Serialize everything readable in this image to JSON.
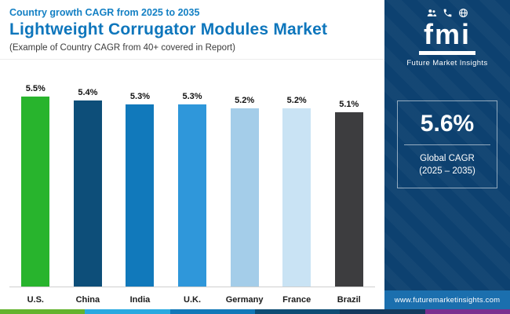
{
  "header": {
    "eyebrow": "Country growth CAGR from 2025 to 2035",
    "title": "Lightweight Corrugator Modules Market",
    "subtitle": "(Example of Country CAGR from 40+ covered in Report)"
  },
  "chart_data": {
    "type": "bar",
    "title": "Country growth CAGR from 2025 to 2035",
    "categories": [
      "U.S.",
      "China",
      "India",
      "U.K.",
      "Germany",
      "France",
      "Brazil"
    ],
    "values": [
      5.5,
      5.4,
      5.3,
      5.3,
      5.2,
      5.2,
      5.1
    ],
    "value_labels": [
      "5.5%",
      "5.4%",
      "5.3%",
      "5.3%",
      "5.2%",
      "5.2%",
      "5.1%"
    ],
    "bar_colors": [
      "#28b42d",
      "#0d4e79",
      "#1179bb",
      "#2f97da",
      "#a4cde9",
      "#c9e3f4",
      "#3d3d3f"
    ],
    "unit": "%",
    "xlabel": "",
    "ylabel": "",
    "ylim": [
      5.0,
      5.6
    ],
    "grid": false,
    "legend": false
  },
  "sidebar": {
    "logo_text": "fmi",
    "logo_tagline": "Future Market Insights",
    "icons": [
      "people-icon",
      "phone-icon",
      "globe-icon"
    ],
    "stat_value": "5.6%",
    "stat_label_line1": "Global CAGR",
    "stat_label_line2": "(2025 – 2035)",
    "footer_url": "www.futuremarketinsights.com"
  },
  "colors": {
    "accent_blue": "#0e76bc",
    "eyebrow_blue": "#1480c4",
    "sidebar_bg": "#0d4170",
    "footer_bar_bg": "#1b6fae",
    "stripe": [
      "#63b32e",
      "#2aa9e0",
      "#1178b8",
      "#0e4d74",
      "#143a5e",
      "#7a2f8f"
    ]
  }
}
